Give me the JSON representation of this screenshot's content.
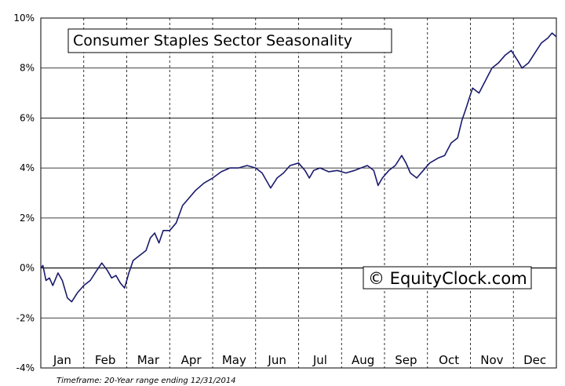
{
  "chart_data": {
    "type": "line",
    "title": "Consumer Staples Sector Seasonality",
    "watermark": "© EquityClock.com",
    "footer": "Timeframe: 20-Year range ending 12/31/2014",
    "y_ticks": [
      "10%",
      "8%",
      "6%",
      "4%",
      "2%",
      "0%",
      "-2%",
      "-4%"
    ],
    "ylim": [
      -4,
      10
    ],
    "months": [
      "Jan",
      "Feb",
      "Mar",
      "Apr",
      "May",
      "Jun",
      "Jul",
      "Aug",
      "Sep",
      "Oct",
      "Nov",
      "Dec"
    ],
    "grid": {
      "horizontal": "solid",
      "vertical": "dashed"
    },
    "line_color": "#1a1a6e",
    "series": [
      {
        "values": [
          {
            "x": 0.0,
            "y": 0.0
          },
          {
            "x": 0.05,
            "y": 0.1
          },
          {
            "x": 0.12,
            "y": -0.5
          },
          {
            "x": 0.2,
            "y": -0.4
          },
          {
            "x": 0.28,
            "y": -0.7
          },
          {
            "x": 0.4,
            "y": -0.2
          },
          {
            "x": 0.5,
            "y": -0.5
          },
          {
            "x": 0.62,
            "y": -1.2
          },
          {
            "x": 0.72,
            "y": -1.35
          },
          {
            "x": 0.85,
            "y": -1.0
          },
          {
            "x": 1.0,
            "y": -0.7
          },
          {
            "x": 1.15,
            "y": -0.5
          },
          {
            "x": 1.3,
            "y": -0.1
          },
          {
            "x": 1.42,
            "y": 0.2
          },
          {
            "x": 1.55,
            "y": -0.1
          },
          {
            "x": 1.65,
            "y": -0.4
          },
          {
            "x": 1.75,
            "y": -0.3
          },
          {
            "x": 1.85,
            "y": -0.6
          },
          {
            "x": 1.95,
            "y": -0.8
          },
          {
            "x": 2.05,
            "y": -0.2
          },
          {
            "x": 2.15,
            "y": 0.3
          },
          {
            "x": 2.3,
            "y": 0.5
          },
          {
            "x": 2.45,
            "y": 0.7
          },
          {
            "x": 2.55,
            "y": 1.2
          },
          {
            "x": 2.65,
            "y": 1.4
          },
          {
            "x": 2.75,
            "y": 1.0
          },
          {
            "x": 2.85,
            "y": 1.5
          },
          {
            "x": 3.0,
            "y": 1.5
          },
          {
            "x": 3.15,
            "y": 1.8
          },
          {
            "x": 3.3,
            "y": 2.5
          },
          {
            "x": 3.45,
            "y": 2.8
          },
          {
            "x": 3.6,
            "y": 3.1
          },
          {
            "x": 3.8,
            "y": 3.4
          },
          {
            "x": 4.0,
            "y": 3.6
          },
          {
            "x": 4.2,
            "y": 3.85
          },
          {
            "x": 4.4,
            "y": 4.0
          },
          {
            "x": 4.6,
            "y": 4.0
          },
          {
            "x": 4.8,
            "y": 4.1
          },
          {
            "x": 5.0,
            "y": 4.0
          },
          {
            "x": 5.15,
            "y": 3.8
          },
          {
            "x": 5.35,
            "y": 3.2
          },
          {
            "x": 5.5,
            "y": 3.6
          },
          {
            "x": 5.65,
            "y": 3.8
          },
          {
            "x": 5.8,
            "y": 4.1
          },
          {
            "x": 6.0,
            "y": 4.2
          },
          {
            "x": 6.15,
            "y": 3.9
          },
          {
            "x": 6.25,
            "y": 3.6
          },
          {
            "x": 6.35,
            "y": 3.9
          },
          {
            "x": 6.5,
            "y": 4.0
          },
          {
            "x": 6.7,
            "y": 3.85
          },
          {
            "x": 6.9,
            "y": 3.9
          },
          {
            "x": 7.1,
            "y": 3.8
          },
          {
            "x": 7.3,
            "y": 3.9
          },
          {
            "x": 7.45,
            "y": 4.0
          },
          {
            "x": 7.6,
            "y": 4.1
          },
          {
            "x": 7.75,
            "y": 3.9
          },
          {
            "x": 7.85,
            "y": 3.3
          },
          {
            "x": 7.95,
            "y": 3.6
          },
          {
            "x": 8.1,
            "y": 3.9
          },
          {
            "x": 8.25,
            "y": 4.1
          },
          {
            "x": 8.4,
            "y": 4.5
          },
          {
            "x": 8.5,
            "y": 4.2
          },
          {
            "x": 8.6,
            "y": 3.8
          },
          {
            "x": 8.75,
            "y": 3.6
          },
          {
            "x": 8.9,
            "y": 3.9
          },
          {
            "x": 9.05,
            "y": 4.2
          },
          {
            "x": 9.25,
            "y": 4.4
          },
          {
            "x": 9.4,
            "y": 4.5
          },
          {
            "x": 9.55,
            "y": 5.0
          },
          {
            "x": 9.7,
            "y": 5.2
          },
          {
            "x": 9.8,
            "y": 5.9
          },
          {
            "x": 9.9,
            "y": 6.4
          },
          {
            "x": 10.05,
            "y": 7.2
          },
          {
            "x": 10.2,
            "y": 7.0
          },
          {
            "x": 10.35,
            "y": 7.5
          },
          {
            "x": 10.5,
            "y": 8.0
          },
          {
            "x": 10.65,
            "y": 8.2
          },
          {
            "x": 10.8,
            "y": 8.5
          },
          {
            "x": 10.95,
            "y": 8.7
          },
          {
            "x": 11.1,
            "y": 8.3
          },
          {
            "x": 11.2,
            "y": 8.0
          },
          {
            "x": 11.35,
            "y": 8.2
          },
          {
            "x": 11.5,
            "y": 8.6
          },
          {
            "x": 11.65,
            "y": 9.0
          },
          {
            "x": 11.8,
            "y": 9.2
          },
          {
            "x": 11.9,
            "y": 9.4
          },
          {
            "x": 12.0,
            "y": 9.25
          }
        ]
      }
    ]
  }
}
